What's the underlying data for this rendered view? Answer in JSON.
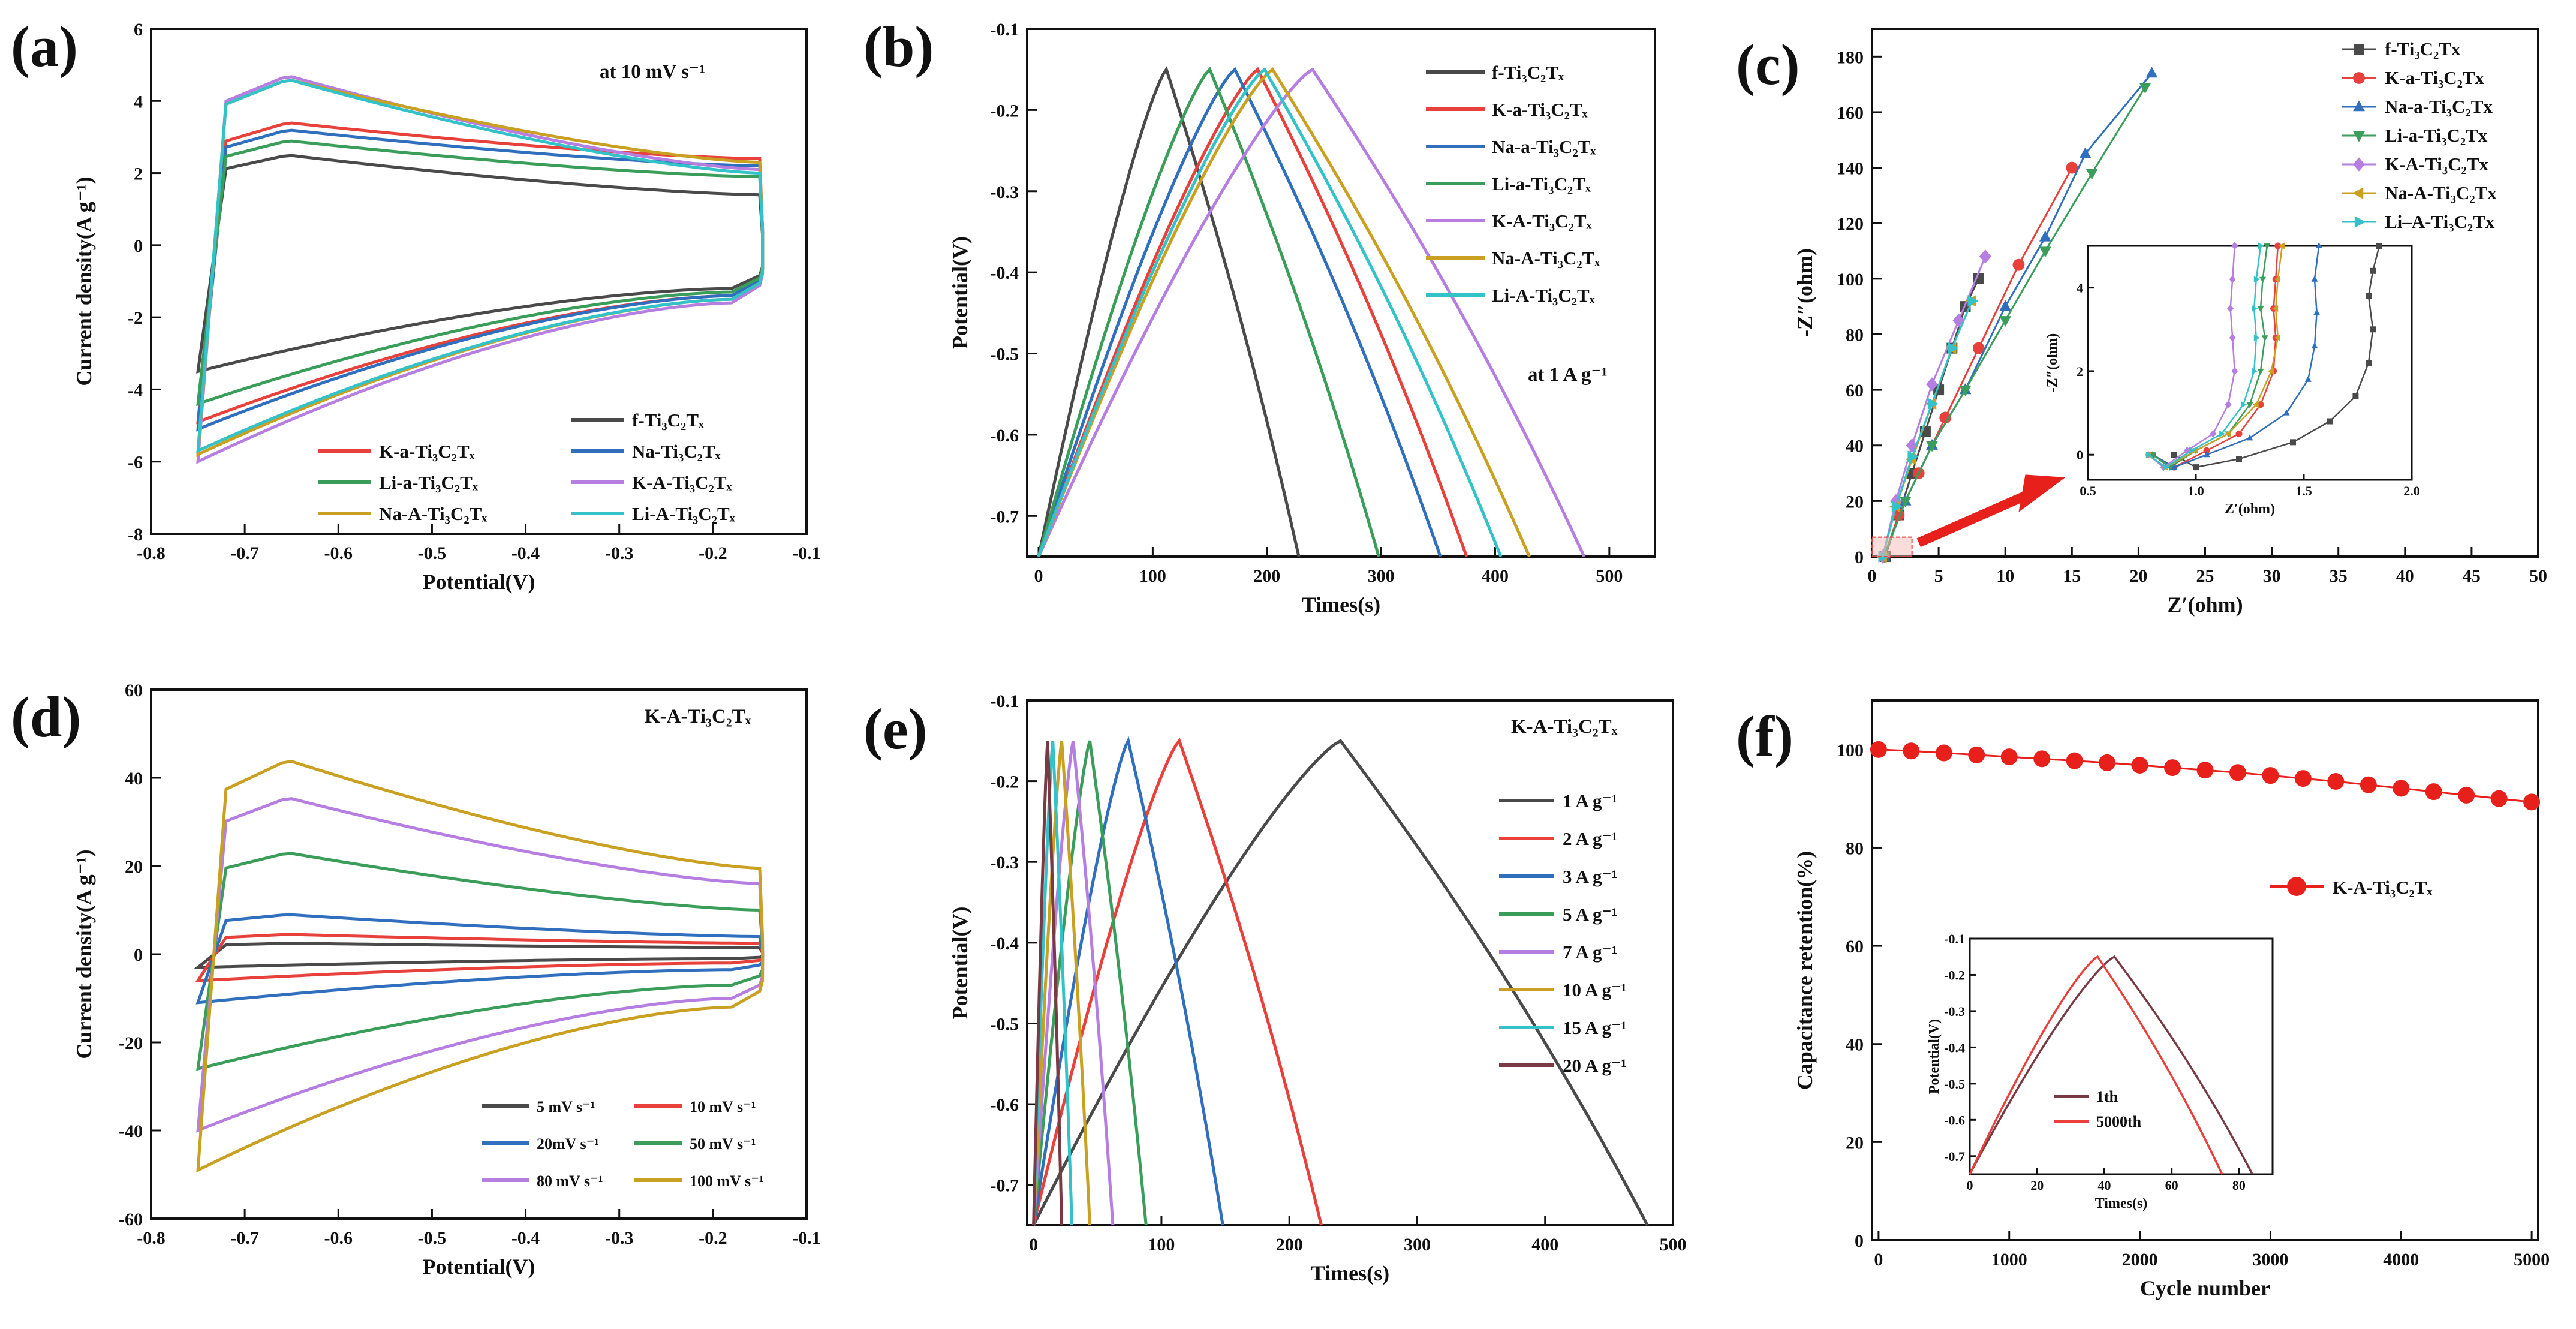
{
  "chart_data": [
    {
      "id": "a",
      "type": "line",
      "panel_label": "(a)",
      "xlabel": "Potential(V)",
      "ylabel": "Current density(A g⁻¹)",
      "xlim": [
        -0.8,
        -0.1
      ],
      "ylim": [
        -8,
        6
      ],
      "xticks": [
        -0.8,
        -0.7,
        -0.6,
        -0.5,
        -0.4,
        -0.3,
        -0.2,
        -0.1
      ],
      "xtick_labels": [
        "-0.8",
        "-0.7",
        "-0.6",
        "-0.5",
        "-0.4",
        "-0.3",
        "-0.2",
        "-0.1"
      ],
      "yticks": [
        -8,
        -6,
        -4,
        -2,
        0,
        2,
        4,
        6
      ],
      "ytick_labels": [
        "-8",
        "-6",
        "-4",
        "-2",
        "0",
        "2",
        "4",
        "6"
      ],
      "annotation": "at 10 mV s⁻¹",
      "legend_position": "bottom-right",
      "legend_columns": 2,
      "series": [
        {
          "name": "f-Ti₃C₂Tₓ",
          "color": "#4a4a4a",
          "cv": [
            -3.5,
            2.5,
            1.4,
            -1.2
          ]
        },
        {
          "name": "K-a-Ti₃C₂Tₓ",
          "color": "#e8403a",
          "cv": [
            -4.9,
            3.4,
            2.4,
            -1.4
          ]
        },
        {
          "name": "Na-Ti₃C₂Tₓ",
          "color": "#2f6fbd",
          "cv": [
            -5.1,
            3.2,
            2.2,
            -1.4
          ]
        },
        {
          "name": "Li-a-Ti₃C₂Tₓ",
          "color": "#3a9e5a",
          "cv": [
            -4.4,
            2.9,
            1.9,
            -1.3
          ]
        },
        {
          "name": "K-A-Ti₃C₂Tₓ",
          "color": "#b67ee0",
          "cv": [
            -6.0,
            4.7,
            2.1,
            -1.6
          ]
        },
        {
          "name": "Na-A-Ti₃C₂Tₓ",
          "color": "#c9a022",
          "cv": [
            -5.8,
            4.6,
            2.3,
            -1.5
          ]
        },
        {
          "name": "Li-A-Ti₃C₂Tₓ",
          "color": "#33c2c8",
          "cv": [
            -5.7,
            4.6,
            2.0,
            -1.5
          ]
        }
      ]
    },
    {
      "id": "b",
      "type": "line",
      "panel_label": "(b)",
      "xlabel": "Times(s)",
      "ylabel": "Potential(V)",
      "xlim": [
        -10,
        540
      ],
      "ylim": [
        -0.75,
        -0.1
      ],
      "xticks": [
        0,
        100,
        200,
        300,
        400,
        500
      ],
      "xtick_labels": [
        "0",
        "100",
        "200",
        "300",
        "400",
        "500"
      ],
      "yticks": [
        -0.7,
        -0.6,
        -0.5,
        -0.4,
        -0.3,
        -0.2,
        -0.1
      ],
      "ytick_labels": [
        "-0.7",
        "-0.6",
        "-0.5",
        "-0.4",
        "-0.3",
        "-0.2",
        "-0.1"
      ],
      "annotation": "at 1 A g⁻¹",
      "legend_position": "top-right",
      "series": [
        {
          "name": "f-Ti₃C₂Tₓ",
          "color": "#4a4a4a",
          "peak_time": 112,
          "end_time": 228
        },
        {
          "name": "K-a-Ti₃C₂Tₓ",
          "color": "#e8403a",
          "peak_time": 192,
          "end_time": 375
        },
        {
          "name": "Na-a-Ti₃C₂Tₓ",
          "color": "#2f6fbd",
          "peak_time": 172,
          "end_time": 352
        },
        {
          "name": "Li-a-Ti₃C₂Tₓ",
          "color": "#3a9e5a",
          "peak_time": 150,
          "end_time": 298
        },
        {
          "name": "K-A-Ti₃C₂Tₓ",
          "color": "#b67ee0",
          "peak_time": 240,
          "end_time": 478
        },
        {
          "name": "Na-A-Ti₃C₂Tₓ",
          "color": "#c9a022",
          "peak_time": 205,
          "end_time": 430
        },
        {
          "name": "Li-A-Ti₃C₂Tₓ",
          "color": "#33c2c8",
          "peak_time": 198,
          "end_time": 405
        }
      ]
    },
    {
      "id": "c",
      "type": "scatter",
      "panel_label": "(c)",
      "xlabel": "Z′(ohm)",
      "ylabel": "-Z″(ohm)",
      "xlim": [
        0,
        50
      ],
      "ylim": [
        0,
        190
      ],
      "xticks": [
        0,
        5,
        10,
        15,
        20,
        25,
        30,
        35,
        40,
        45,
        50
      ],
      "xtick_labels": [
        "0",
        "5",
        "10",
        "15",
        "20",
        "25",
        "30",
        "35",
        "40",
        "45",
        "50"
      ],
      "yticks": [
        0,
        20,
        40,
        60,
        80,
        100,
        120,
        140,
        160,
        180
      ],
      "ytick_labels": [
        "0",
        "20",
        "40",
        "60",
        "80",
        "100",
        "120",
        "140",
        "160",
        "180"
      ],
      "legend_position": "top-right",
      "series": [
        {
          "name": "f-Ti₃C₂Tx",
          "color": "#4a4a4a",
          "marker": "square",
          "x": [
            1.0,
            2.0,
            3.0,
            4.0,
            5.0,
            6.0,
            7.0,
            8.0
          ],
          "y": [
            0,
            15,
            30,
            45,
            60,
            75,
            90,
            100
          ]
        },
        {
          "name": "K-a-Ti₃C₂Tx",
          "color": "#e8403a",
          "marker": "circle",
          "x": [
            0.9,
            2.0,
            3.5,
            5.5,
            8.0,
            11.0,
            15.0
          ],
          "y": [
            0,
            15,
            30,
            50,
            75,
            105,
            140
          ]
        },
        {
          "name": "Na-a-Ti₃C₂Tx",
          "color": "#2f6fbd",
          "marker": "triangle-up",
          "x": [
            0.9,
            2.5,
            4.5,
            7.0,
            10.0,
            13.0,
            16.0,
            21.0
          ],
          "y": [
            0,
            20,
            40,
            60,
            90,
            115,
            145,
            174
          ]
        },
        {
          "name": "Li-a-Ti₃C₂Tx",
          "color": "#3a9e5a",
          "marker": "triangle-down",
          "x": [
            0.9,
            2.5,
            4.5,
            7.0,
            10.0,
            13.0,
            16.5,
            20.5
          ],
          "y": [
            0,
            20,
            40,
            60,
            85,
            110,
            138,
            169
          ]
        },
        {
          "name": "K-A-Ti₃C₂Tx",
          "color": "#b67ee0",
          "marker": "diamond",
          "x": [
            0.8,
            1.8,
            3.0,
            4.5,
            6.5,
            8.5
          ],
          "y": [
            0,
            20,
            40,
            62,
            85,
            108
          ]
        },
        {
          "name": "Na-A-Ti₃C₂Tx",
          "color": "#c9a022",
          "marker": "triangle-left",
          "x": [
            0.8,
            1.8,
            3.0,
            4.5,
            6.0,
            7.5
          ],
          "y": [
            0,
            18,
            35,
            55,
            75,
            92
          ]
        },
        {
          "name": "Li–A-Ti₃C₂Tx",
          "color": "#33c2c8",
          "marker": "triangle-right",
          "x": [
            0.8,
            1.8,
            3.0,
            4.5,
            6.0,
            7.5
          ],
          "y": [
            0,
            18,
            36,
            55,
            75,
            92
          ]
        }
      ],
      "inset": {
        "xlabel": "Z′(ohm)",
        "ylabel": "-Z″(ohm)",
        "xlim": [
          0.5,
          2.0
        ],
        "ylim": [
          -0.6,
          5.0
        ],
        "xticks": [
          0.5,
          1.0,
          1.5,
          2.0
        ],
        "xtick_labels": [
          "0.5",
          "1.0",
          "1.5",
          "2.0"
        ],
        "yticks": [
          0,
          2,
          4
        ],
        "ytick_labels": [
          "0",
          "2",
          "4"
        ],
        "series": [
          {
            "name": "f-Ti₃C₂Tx",
            "color": "#4a4a4a",
            "x": [
              0.9,
              1.0,
              1.2,
              1.45,
              1.62,
              1.74,
              1.8,
              1.82,
              1.8,
              1.82,
              1.85
            ],
            "y": [
              0,
              -0.3,
              -0.1,
              0.3,
              0.8,
              1.4,
              2.2,
              3.0,
              3.8,
              4.4,
              5.0
            ]
          },
          {
            "name": "K-a-Ti₃C₂Tx",
            "color": "#e8403a",
            "x": [
              0.8,
              0.9,
              1.05,
              1.2,
              1.3,
              1.36,
              1.37,
              1.36,
              1.37,
              1.38
            ],
            "y": [
              0,
              -0.3,
              0.1,
              0.5,
              1.2,
              2.0,
              2.8,
              3.5,
              4.2,
              5.0
            ]
          },
          {
            "name": "Na-a-Ti₃C₂Tx",
            "color": "#2f6fbd",
            "x": [
              0.8,
              0.9,
              1.05,
              1.25,
              1.42,
              1.52,
              1.55,
              1.56,
              1.55,
              1.57
            ],
            "y": [
              0,
              -0.3,
              0.0,
              0.4,
              1.0,
              1.8,
              2.6,
              3.4,
              4.2,
              5.0
            ]
          },
          {
            "name": "Li-a-Ti₃C₂Tx",
            "color": "#3a9e5a",
            "x": [
              0.8,
              0.88,
              1.0,
              1.15,
              1.25,
              1.3,
              1.32,
              1.3,
              1.31,
              1.33
            ],
            "y": [
              0,
              -0.3,
              0.1,
              0.5,
              1.2,
              2.0,
              2.8,
              3.5,
              4.2,
              5.0
            ]
          },
          {
            "name": "K-A-Ti₃C₂Tx",
            "color": "#b67ee0",
            "x": [
              0.78,
              0.85,
              0.96,
              1.08,
              1.15,
              1.18,
              1.17,
              1.16,
              1.17,
              1.18
            ],
            "y": [
              0,
              -0.3,
              0.1,
              0.5,
              1.2,
              2.0,
              2.8,
              3.5,
              4.2,
              5.0
            ]
          },
          {
            "name": "Na-A-Ti₃C₂Tx",
            "color": "#c9a022",
            "x": [
              0.78,
              0.86,
              1.0,
              1.15,
              1.28,
              1.35,
              1.38,
              1.37,
              1.38,
              1.4
            ],
            "y": [
              0,
              -0.3,
              0.1,
              0.5,
              1.2,
              2.0,
              2.8,
              3.5,
              4.2,
              5.0
            ]
          },
          {
            "name": "Li–A-Ti₃C₂Tx",
            "color": "#33c2c8",
            "x": [
              0.78,
              0.86,
              0.98,
              1.12,
              1.22,
              1.27,
              1.28,
              1.27,
              1.28,
              1.3
            ],
            "y": [
              0,
              -0.3,
              0.1,
              0.5,
              1.2,
              2.0,
              2.8,
              3.5,
              4.2,
              5.0
            ]
          }
        ]
      }
    },
    {
      "id": "d",
      "type": "line",
      "panel_label": "(d)",
      "xlabel": "Potential(V)",
      "ylabel": "Current density(A g⁻¹)",
      "xlim": [
        -0.8,
        -0.1
      ],
      "ylim": [
        -60,
        60
      ],
      "xticks": [
        -0.8,
        -0.7,
        -0.6,
        -0.5,
        -0.4,
        -0.3,
        -0.2,
        -0.1
      ],
      "xtick_labels": [
        "-0.8",
        "-0.7",
        "-0.6",
        "-0.5",
        "-0.4",
        "-0.3",
        "-0.2",
        "-0.1"
      ],
      "yticks": [
        -60,
        -40,
        -20,
        0,
        20,
        40,
        60
      ],
      "ytick_labels": [
        "-60",
        "-40",
        "-20",
        "0",
        "20",
        "40",
        "60"
      ],
      "annotation": "K-A-Ti₃C₂Tₓ",
      "legend_position": "bottom-right",
      "legend_columns": 2,
      "series": [
        {
          "name": "5 mV s⁻¹",
          "color": "#4a4a4a",
          "cv": [
            -3.0,
            2.5,
            1.5,
            -1.0
          ]
        },
        {
          "name": "10 mV s⁻¹",
          "color": "#e8403a",
          "cv": [
            -6.0,
            4.5,
            2.5,
            -2.0
          ]
        },
        {
          "name": "20mV s⁻¹",
          "color": "#2f6fbd",
          "cv": [
            -11.0,
            9.0,
            4.0,
            -3.5
          ]
        },
        {
          "name": "50 mV s⁻¹",
          "color": "#3a9e5a",
          "cv": [
            -26.0,
            23.0,
            10.0,
            -7.0
          ]
        },
        {
          "name": "80 mV s⁻¹",
          "color": "#b67ee0",
          "cv": [
            -40.0,
            35.5,
            16.0,
            -10.0
          ]
        },
        {
          "name": "100 mV s⁻¹",
          "color": "#c9a022",
          "cv": [
            -49.0,
            44.0,
            19.5,
            -12.0
          ]
        }
      ]
    },
    {
      "id": "e",
      "type": "line",
      "panel_label": "(e)",
      "xlabel": "Times(s)",
      "ylabel": "Potential(V)",
      "xlim": [
        -5,
        500
      ],
      "ylim": [
        -0.75,
        -0.1
      ],
      "xticks": [
        0,
        100,
        200,
        300,
        400,
        500
      ],
      "xtick_labels": [
        "0",
        "100",
        "200",
        "300",
        "400",
        "500"
      ],
      "yticks": [
        -0.7,
        -0.6,
        -0.5,
        -0.4,
        -0.3,
        -0.2,
        -0.1
      ],
      "ytick_labels": [
        "-0.7",
        "-0.6",
        "-0.5",
        "-0.4",
        "-0.3",
        "-0.2",
        "-0.1"
      ],
      "annotation": "K-A-Ti₃C₂Tₓ",
      "legend_position": "right",
      "series": [
        {
          "name": "1 A g⁻¹",
          "color": "#4a4a4a",
          "peak_time": 240,
          "end_time": 480
        },
        {
          "name": "2 A g⁻¹",
          "color": "#e8403a",
          "peak_time": 114,
          "end_time": 225
        },
        {
          "name": "3 A g⁻¹",
          "color": "#2f6fbd",
          "peak_time": 74,
          "end_time": 148
        },
        {
          "name": "5 A g⁻¹",
          "color": "#3a9e5a",
          "peak_time": 44,
          "end_time": 88
        },
        {
          "name": "7 A g⁻¹",
          "color": "#b67ee0",
          "peak_time": 31,
          "end_time": 62
        },
        {
          "name": "10 A g⁻¹",
          "color": "#c9a022",
          "peak_time": 22,
          "end_time": 44
        },
        {
          "name": "15 A g⁻¹",
          "color": "#33c2c8",
          "peak_time": 15,
          "end_time": 30
        },
        {
          "name": "20 A g⁻¹",
          "color": "#7a3a44",
          "peak_time": 11,
          "end_time": 22
        }
      ]
    },
    {
      "id": "f",
      "type": "line",
      "panel_label": "(f)",
      "xlabel": "Cycle number",
      "ylabel": "Capacitance retention(%)",
      "xlim": [
        -50,
        5050
      ],
      "ylim": [
        0,
        110
      ],
      "xticks": [
        0,
        1000,
        2000,
        3000,
        4000,
        5000
      ],
      "xtick_labels": [
        "0",
        "1000",
        "2000",
        "3000",
        "4000",
        "5000"
      ],
      "yticks": [
        0,
        20,
        40,
        60,
        80,
        100
      ],
      "ytick_labels": [
        "0",
        "20",
        "40",
        "60",
        "80",
        "100"
      ],
      "legend_position": "right",
      "series": [
        {
          "name": "K-A-Ti₃C₂Tₓ",
          "color": "#e8201c",
          "x": [
            0,
            250,
            500,
            750,
            1000,
            1250,
            1500,
            1750,
            2000,
            2250,
            2500,
            2750,
            3000,
            3250,
            3500,
            3750,
            4000,
            4250,
            4500,
            4750,
            5000
          ],
          "y": [
            100,
            99.7,
            99.3,
            98.9,
            98.5,
            98.1,
            97.7,
            97.3,
            96.8,
            96.3,
            95.8,
            95.3,
            94.7,
            94.1,
            93.5,
            92.8,
            92.1,
            91.4,
            90.7,
            90.0,
            89.3
          ]
        }
      ],
      "inset": {
        "xlabel": "Times(s)",
        "ylabel": "Potential(V)",
        "xlim": [
          0,
          90
        ],
        "ylim": [
          -0.75,
          -0.1
        ],
        "xticks": [
          0,
          20,
          40,
          60,
          80
        ],
        "xtick_labels": [
          "0",
          "20",
          "40",
          "60",
          "80"
        ],
        "yticks": [
          -0.7,
          -0.6,
          -0.5,
          -0.4,
          -0.3,
          -0.2,
          -0.1
        ],
        "ytick_labels": [
          "-0.7",
          "-0.6",
          "-0.5",
          "-0.4",
          "-0.3",
          "-0.2",
          "-0.1"
        ],
        "series": [
          {
            "name": "1th",
            "color": "#7a3a44",
            "peak_time": 43,
            "end_time": 84
          },
          {
            "name": "5000th",
            "color": "#e8403a",
            "peak_time": 38,
            "end_time": 75
          }
        ]
      }
    }
  ]
}
